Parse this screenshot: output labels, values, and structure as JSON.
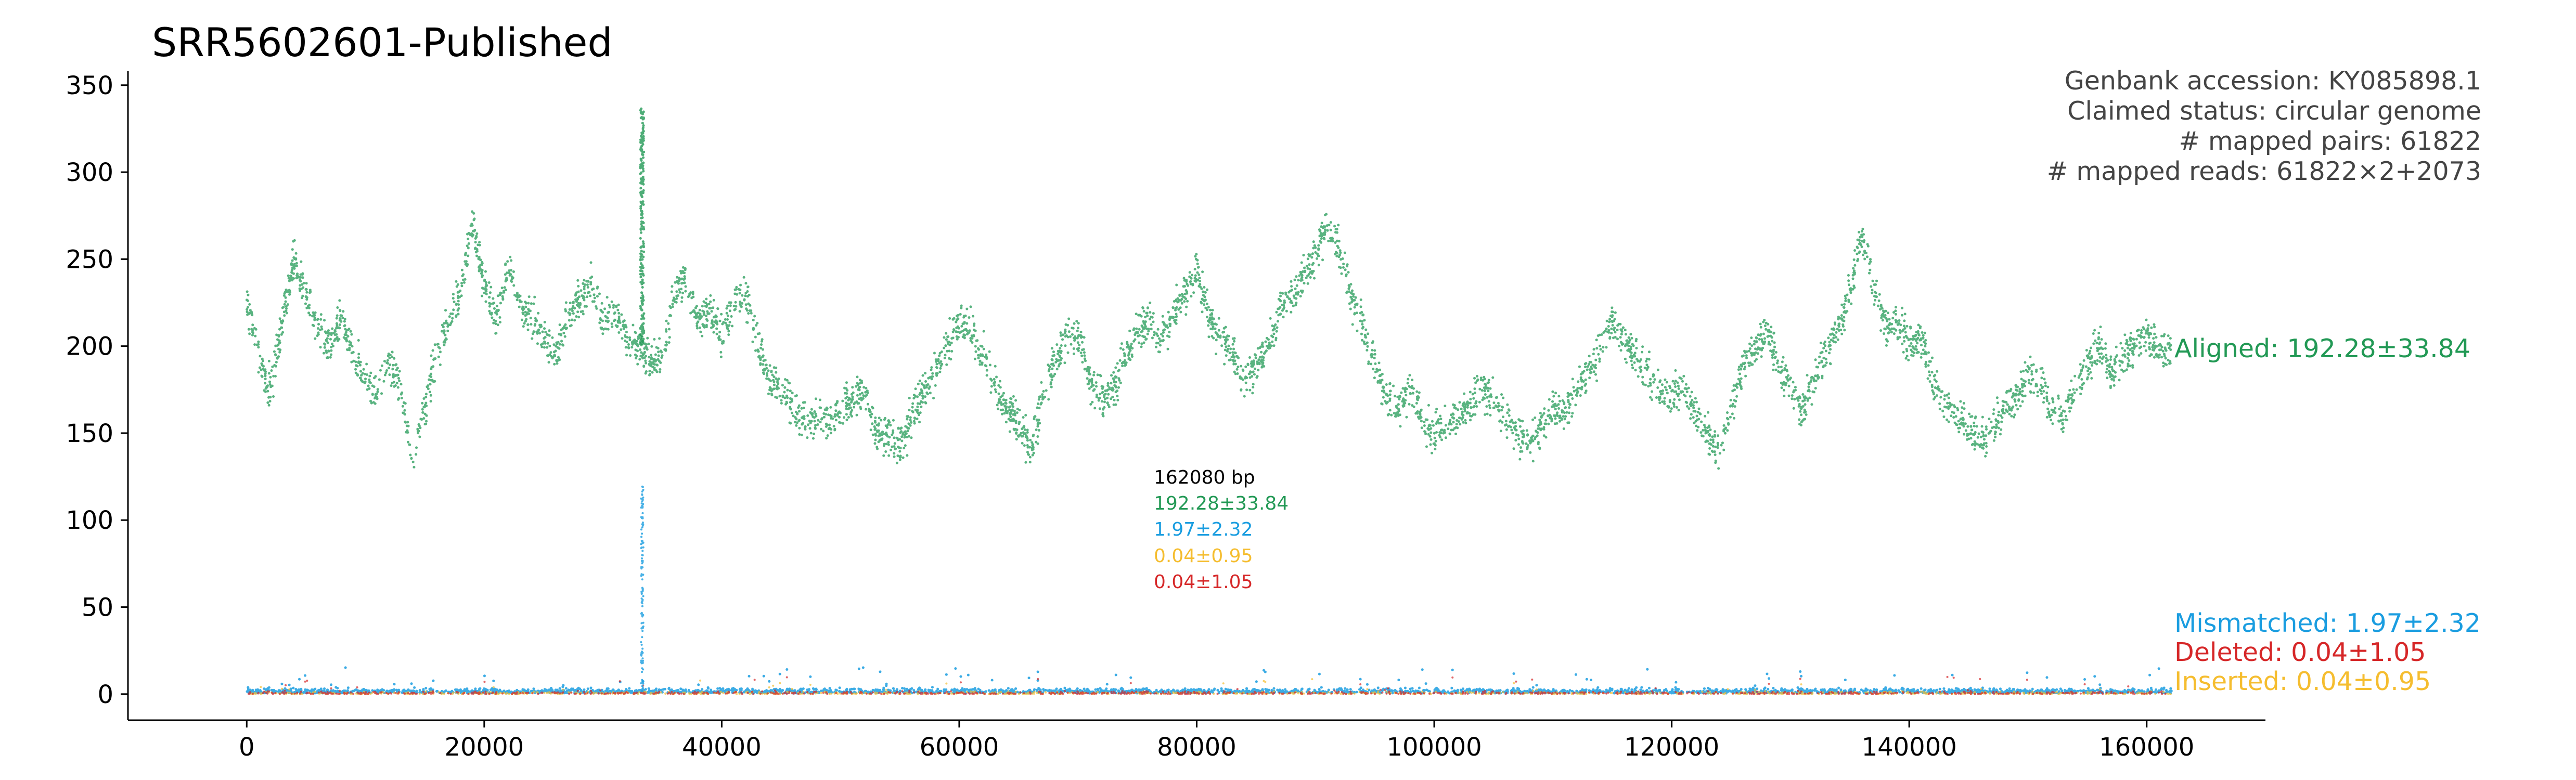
{
  "chart_data": {
    "type": "scatter",
    "title": "SRR5602601-Published",
    "xlabel": "",
    "ylabel": "",
    "xlim": [
      -10000,
      170000
    ],
    "ylim": [
      -15,
      358
    ],
    "x_ticks": [
      0,
      20000,
      40000,
      60000,
      80000,
      100000,
      120000,
      140000,
      160000
    ],
    "x_tick_labels": [
      "0",
      "20000",
      "40000",
      "60000",
      "80000",
      "100000",
      "120000",
      "140000",
      "160000"
    ],
    "y_ticks": [
      0,
      50,
      100,
      150,
      200,
      250,
      300,
      350
    ],
    "y_tick_labels": [
      "0",
      "50",
      "100",
      "150",
      "200",
      "250",
      "300",
      "350"
    ],
    "grid": false,
    "info_lines": [
      "Genbank accession: KY085898.1",
      "Claimed status: circular genome",
      "# mapped pairs: 61822",
      "# mapped reads: 61822×2+2073"
    ],
    "center_stats": [
      {
        "text": "162080 bp",
        "color": "#000000"
      },
      {
        "text": "192.28±33.84",
        "color": "#229955"
      },
      {
        "text": "1.97±2.32",
        "color": "#1a9de0"
      },
      {
        "text": "0.04±0.95",
        "color": "#f5bd2f"
      },
      {
        "text": "0.04±1.05",
        "color": "#d62728"
      }
    ],
    "genome_length": 162080,
    "series": [
      {
        "label": "Aligned: 192.28±33.84",
        "color": "#229955",
        "mean": 192.28,
        "sd": 33.84,
        "profile_x": [
          0,
          1000,
          2000,
          3000,
          4000,
          5000,
          6000,
          7000,
          8000,
          9000,
          10000,
          11000,
          12000,
          13000,
          14000,
          15000,
          16000,
          17000,
          18000,
          19000,
          20000,
          21000,
          22000,
          23000,
          24000,
          25000,
          26000,
          27000,
          28000,
          29000,
          30000,
          31000,
          32000,
          33000,
          34000,
          35000,
          36000,
          37000,
          38000,
          39000,
          40000,
          41000,
          42000,
          43000,
          44000,
          45000,
          46000,
          47000,
          48000,
          49000,
          50000,
          51000,
          52000,
          53000,
          54000,
          55000,
          56000,
          57000,
          58000,
          59000,
          60000,
          61000,
          62000,
          63000,
          64000,
          65000,
          66000,
          67000,
          68000,
          69000,
          70000,
          71000,
          72000,
          73000,
          74000,
          75000,
          76000,
          77000,
          78000,
          79000,
          80000,
          81000,
          82000,
          83000,
          84000,
          85000,
          86000,
          87000,
          88000,
          89000,
          90000,
          91000,
          92000,
          93000,
          94000,
          95000,
          96000,
          97000,
          98000,
          99000,
          100000,
          101000,
          102000,
          103000,
          104000,
          105000,
          106000,
          107000,
          108000,
          109000,
          110000,
          111000,
          112000,
          113000,
          114000,
          115000,
          116000,
          117000,
          118000,
          119000,
          120000,
          121000,
          122000,
          123000,
          124000,
          125000,
          126000,
          127000,
          128000,
          129000,
          130000,
          131000,
          132000,
          133000,
          134000,
          135000,
          136000,
          137000,
          138000,
          139000,
          140000,
          141000,
          142000,
          143000,
          144000,
          145000,
          146000,
          147000,
          148000,
          149000,
          150000,
          151000,
          152000,
          153000,
          154000,
          155000,
          156000,
          157000,
          158000,
          159000,
          160000,
          161000,
          162000
        ],
        "profile_y": [
          225,
          195,
          175,
          215,
          250,
          230,
          210,
          200,
          215,
          195,
          180,
          175,
          190,
          175,
          130,
          165,
          195,
          215,
          230,
          270,
          235,
          215,
          245,
          225,
          215,
          205,
          195,
          215,
          225,
          235,
          215,
          220,
          205,
          200,
          190,
          195,
          230,
          240,
          215,
          220,
          205,
          225,
          230,
          200,
          180,
          175,
          165,
          155,
          160,
          155,
          165,
          170,
          175,
          150,
          150,
          140,
          160,
          175,
          185,
          200,
          215,
          210,
          195,
          180,
          165,
          155,
          140,
          170,
          190,
          205,
          210,
          180,
          170,
          175,
          195,
          210,
          215,
          205,
          215,
          230,
          245,
          215,
          205,
          195,
          180,
          190,
          200,
          220,
          230,
          240,
          250,
          270,
          255,
          230,
          210,
          190,
          170,
          165,
          175,
          160,
          150,
          155,
          160,
          165,
          175,
          170,
          160,
          150,
          145,
          155,
          165,
          160,
          175,
          185,
          200,
          215,
          205,
          190,
          185,
          175,
          170,
          175,
          160,
          150,
          140,
          165,
          190,
          200,
          210,
          190,
          175,
          165,
          180,
          195,
          210,
          230,
          265,
          235,
          210,
          215,
          200,
          205,
          180,
          170,
          160,
          155,
          145,
          150,
          165,
          170,
          185,
          180,
          165,
          160,
          175,
          190,
          200,
          185,
          195,
          200,
          205,
          200,
          195
        ],
        "peaks": [
          {
            "x": 33300,
            "y": 340
          }
        ]
      },
      {
        "label": "Mismatched: 1.97±2.32",
        "color": "#1a9de0",
        "mean": 1.97,
        "sd": 2.32,
        "peaks": [
          {
            "x": 33300,
            "y": 120
          }
        ]
      },
      {
        "label": "Deleted: 0.04±1.05",
        "color": "#d62728",
        "mean": 0.04,
        "sd": 1.05
      },
      {
        "label": "Inserted: 0.04±0.95",
        "color": "#f5bd2f",
        "mean": 0.04,
        "sd": 0.95
      }
    ]
  }
}
